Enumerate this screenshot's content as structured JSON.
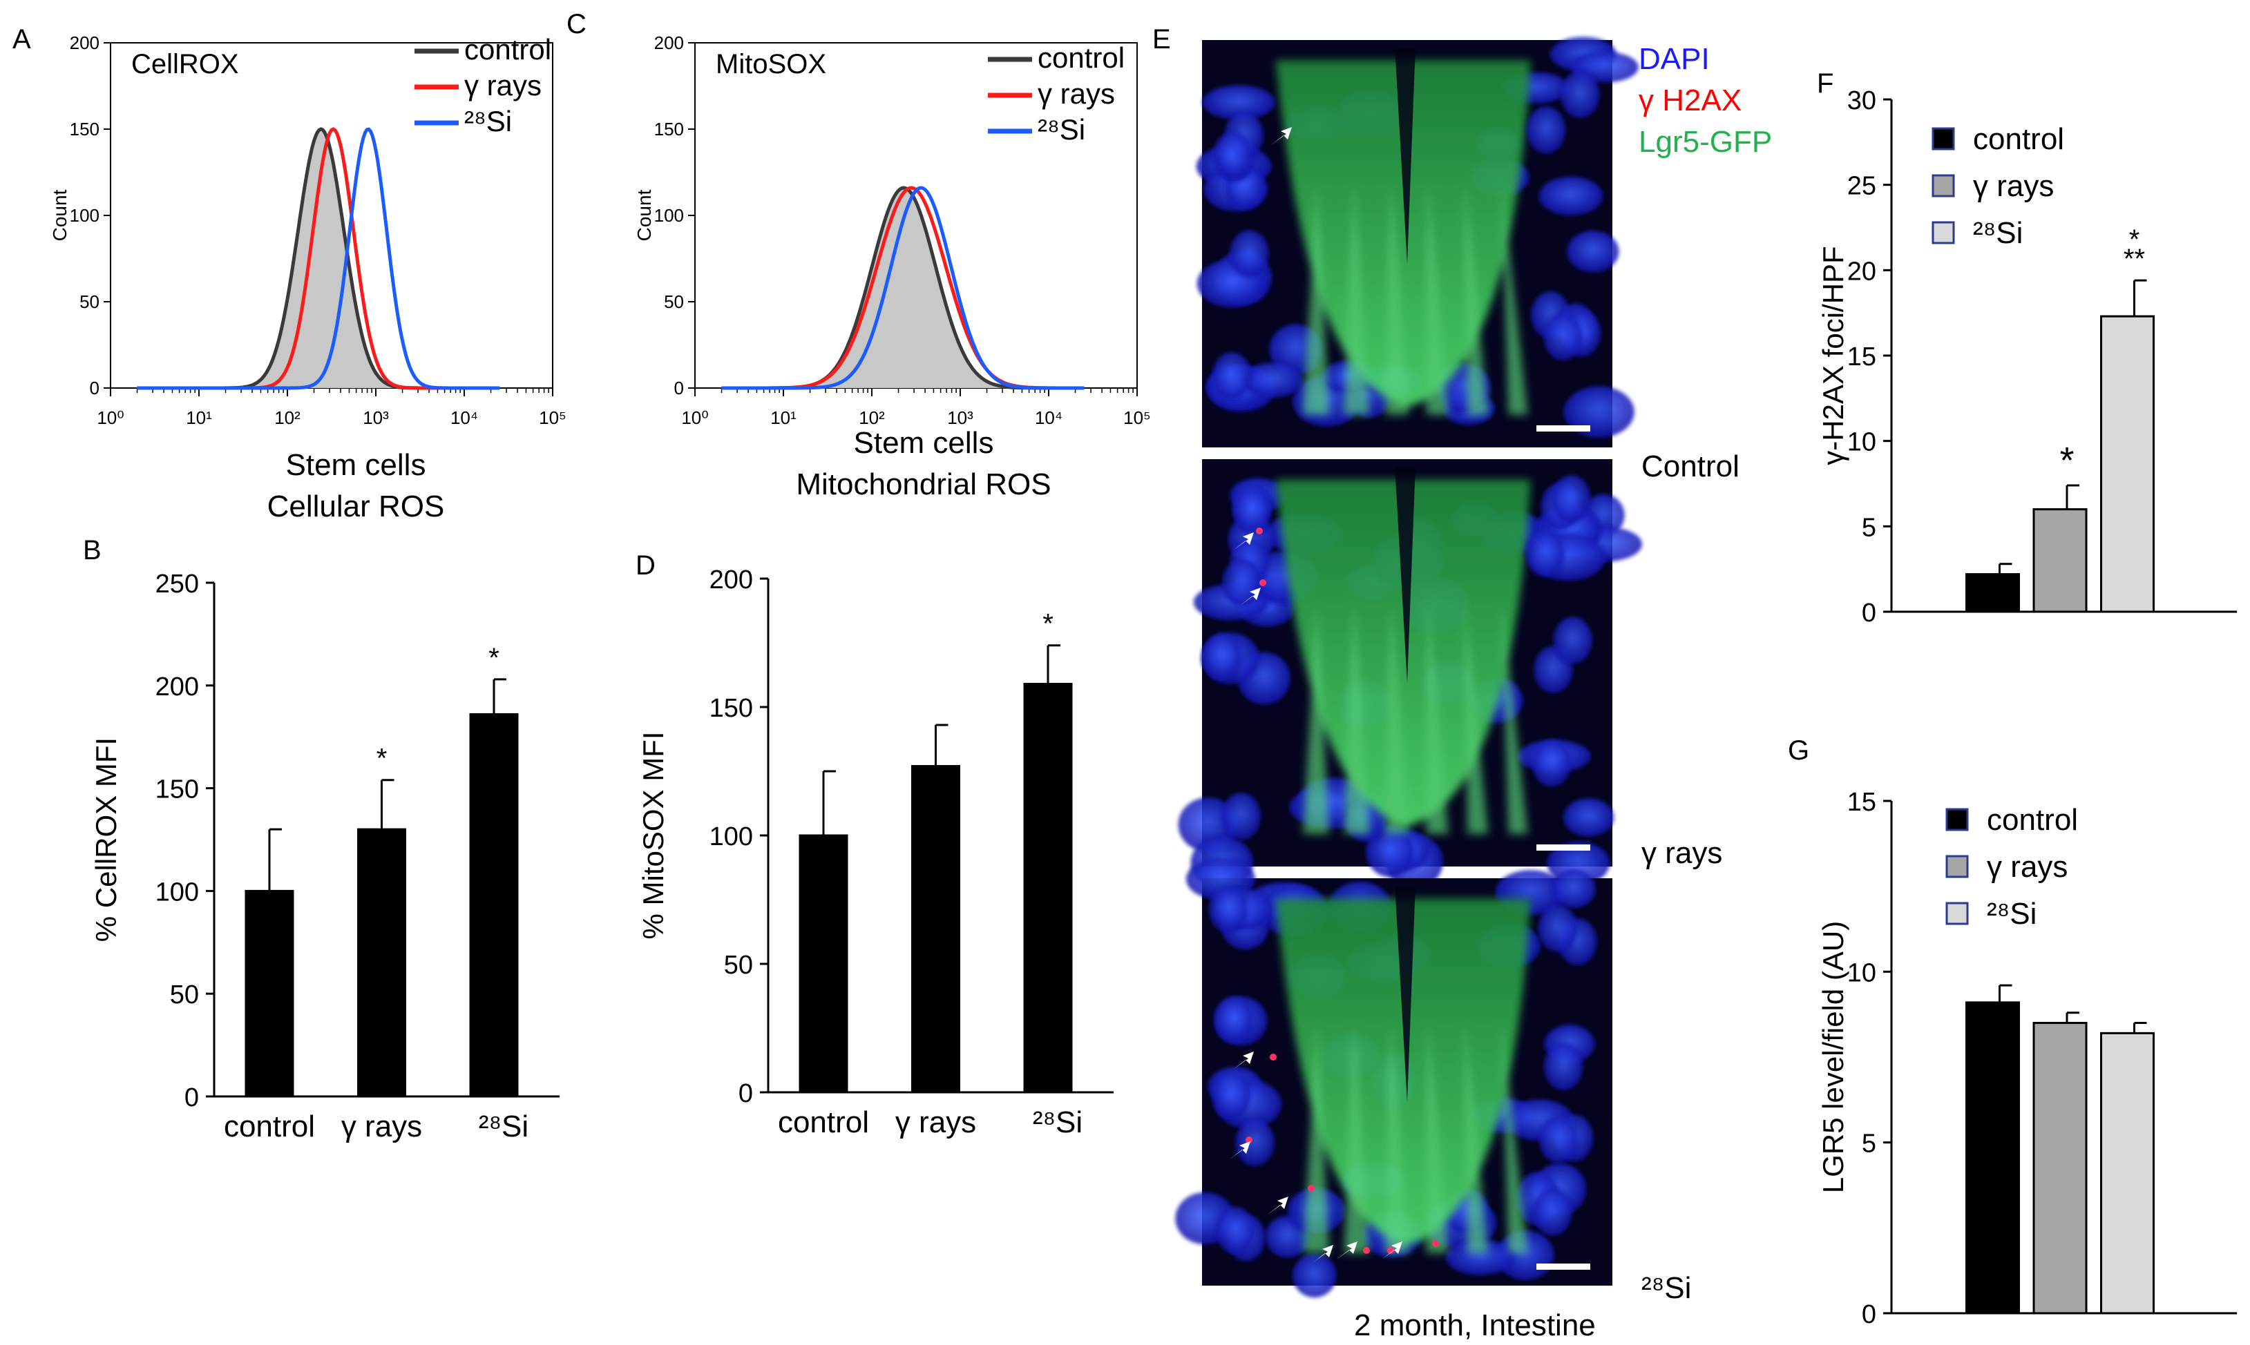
{
  "colors": {
    "control": "#3a3a3a",
    "gamma": "#ff1a1a",
    "si": "#1a5cff",
    "fill_gray": "#c8c8c8",
    "bar_black": "#000000",
    "bar_mid": "#a6a6a6",
    "bar_light": "#d9d9d9",
    "dapi": "#1a1aff",
    "h2ax": "#ff0000",
    "gfp": "#22b14c"
  },
  "panel_labels": {
    "A": "A",
    "B": "B",
    "C": "C",
    "D": "D",
    "E": "E",
    "F": "F",
    "G": "G"
  },
  "chart_data": [
    {
      "id": "A",
      "type": "line",
      "title": "CellROX",
      "xlabel": "",
      "ylabel": "Count",
      "xscale": "log",
      "xlim": [
        1,
        100000
      ],
      "ylim": [
        0,
        200
      ],
      "xticks": [
        "10⁰",
        "10¹",
        "10²",
        "10³",
        "10⁴",
        "10⁵"
      ],
      "yticks": [
        "0",
        "50",
        "100",
        "150",
        "200"
      ],
      "legend": [
        "control",
        "γ rays",
        "²⁸Si"
      ],
      "legend_position": "top-right",
      "series": [
        {
          "name": "control",
          "color_key": "control",
          "filled": true,
          "peak_x": 240,
          "peak_y": 150,
          "sigma": 0.26
        },
        {
          "name": "γ rays",
          "color_key": "gamma",
          "filled": false,
          "peak_x": 330,
          "peak_y": 150,
          "sigma": 0.23
        },
        {
          "name": "²⁸Si",
          "color_key": "si",
          "filled": false,
          "peak_x": 820,
          "peak_y": 150,
          "sigma": 0.21
        }
      ]
    },
    {
      "id": "C",
      "type": "line",
      "title": "MitoSOX",
      "xlabel": "",
      "ylabel": "Count",
      "xscale": "log",
      "xlim": [
        1,
        100000
      ],
      "ylim": [
        0,
        200
      ],
      "xticks": [
        "10⁰",
        "10¹",
        "10²",
        "10³",
        "10⁴",
        "10⁵"
      ],
      "yticks": [
        "0",
        "50",
        "100",
        "150",
        "200"
      ],
      "legend": [
        "control",
        "γ rays",
        "²⁸Si"
      ],
      "legend_position": "top-right",
      "series": [
        {
          "name": "control",
          "color_key": "control",
          "filled": true,
          "peak_x": 230,
          "peak_y": 116,
          "sigma": 0.36
        },
        {
          "name": "γ rays",
          "color_key": "gamma",
          "filled": false,
          "peak_x": 280,
          "peak_y": 116,
          "sigma": 0.39
        },
        {
          "name": "²⁸Si",
          "color_key": "si",
          "filled": false,
          "peak_x": 360,
          "peak_y": 116,
          "sigma": 0.34
        }
      ]
    },
    {
      "id": "B",
      "type": "bar",
      "title": "Stem cells\nCellular ROS",
      "xlabel": "",
      "ylabel": "% CellROX MFI",
      "ylim": [
        0,
        250
      ],
      "yticks": [
        "0",
        "50",
        "100",
        "150",
        "200",
        "250"
      ],
      "categories": [
        "control",
        "γ rays",
        "²⁸Si"
      ],
      "values": [
        100,
        130,
        186
      ],
      "errors": [
        30,
        24,
        17
      ],
      "annotations": [
        "",
        "*",
        "*"
      ]
    },
    {
      "id": "D",
      "type": "bar",
      "title": "Stem cells\nMitochondrial ROS",
      "xlabel": "",
      "ylabel": "% MitoSOX MFI",
      "ylim": [
        0,
        200
      ],
      "yticks": [
        "0",
        "50",
        "100",
        "150",
        "200"
      ],
      "categories": [
        "control",
        "γ rays",
        "²⁸Si"
      ],
      "values": [
        100,
        127,
        159
      ],
      "errors": [
        25,
        16,
        15
      ],
      "annotations": [
        "",
        "",
        "*"
      ]
    },
    {
      "id": "F",
      "type": "bar",
      "title": "",
      "xlabel": "",
      "ylabel": "γ-H2AX foci/HPF",
      "ylim": [
        0,
        30
      ],
      "yticks": [
        "0",
        "5",
        "10",
        "15",
        "20",
        "25",
        "30"
      ],
      "categories": [
        "control",
        "γ rays",
        "²⁸Si"
      ],
      "values": [
        2.2,
        6.0,
        17.3
      ],
      "errors": [
        0.6,
        1.4,
        2.1
      ],
      "annotations": [
        "",
        "*",
        "*\n**"
      ],
      "legend": [
        "control",
        "γ rays",
        "²⁸Si"
      ],
      "legend_position": "top-left"
    },
    {
      "id": "G",
      "type": "bar",
      "title": "",
      "xlabel": "",
      "ylabel": "LGR5 level/field (AU)",
      "ylim": [
        0,
        15
      ],
      "yticks": [
        "0",
        "5",
        "10",
        "15"
      ],
      "categories": [
        "control",
        "γ rays",
        "²⁸Si"
      ],
      "values": [
        9.1,
        8.5,
        8.2
      ],
      "errors": [
        0.5,
        0.3,
        0.3
      ],
      "annotations": [
        "",
        "",
        ""
      ],
      "legend": [
        "control",
        "γ rays",
        "²⁸Si"
      ],
      "legend_position": "top-left"
    }
  ],
  "micrographs": {
    "stain_legend": [
      "DAPI",
      "γ H2AX",
      "Lgr5-GFP"
    ],
    "panel_labels": [
      "Control",
      "γ rays",
      "²⁸Si"
    ],
    "caption": "2 month, Intestine"
  }
}
